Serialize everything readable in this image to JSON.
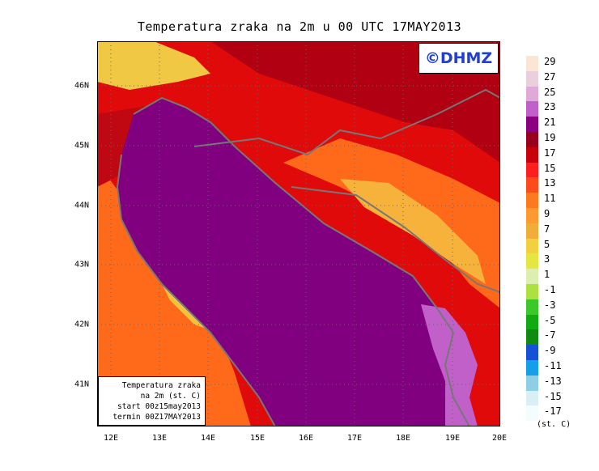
{
  "title": "Temperatura zraka na 2m u 00 UTC 17MAY2013",
  "logo_text": "©DHMZ",
  "info_box": {
    "line1": "Temperatura zraka",
    "line2": "na 2m (st. C)",
    "line3": "start 00z15may2013",
    "line4": "termin 00Z17MAY2013"
  },
  "axes": {
    "x_ticks": [
      "12E",
      "13E",
      "14E",
      "15E",
      "16E",
      "17E",
      "18E",
      "19E",
      "20E"
    ],
    "y_ticks": [
      "46N",
      "45N",
      "44N",
      "43N",
      "42N",
      "41N"
    ]
  },
  "legend": {
    "unit": "(st. C)",
    "labels": [
      "29",
      "27",
      "25",
      "23",
      "21",
      "19",
      "17",
      "15",
      "13",
      "11",
      "9",
      "7",
      "5",
      "3",
      "1",
      "-1",
      "-3",
      "-5",
      "-7",
      "-9",
      "-11",
      "-13",
      "-15",
      "-17"
    ],
    "colors": [
      "#fbe6d6",
      "#ead0dd",
      "#dfaad9",
      "#c060c8",
      "#8a0080",
      "#98001e",
      "#c8000a",
      "#ff1e1e",
      "#ff4a1a",
      "#ff7a1e",
      "#ff9a30",
      "#f0ae38",
      "#f2d040",
      "#e6e640",
      "#dceeb0",
      "#aee040",
      "#3cc828",
      "#12aa12",
      "#108a10",
      "#1450d8",
      "#14a0e8",
      "#8ecfe6",
      "#d8f0f4",
      "#f4fcfe"
    ]
  },
  "colors": {
    "sea": "#800080",
    "sea_deep": "#8b1a8b",
    "coast_dark": "#a8001e",
    "land_red": "#e00a0a",
    "land_orange": "#ff6a1a",
    "land_yellow": "#f4c23a",
    "coastline": "#777777",
    "logo_blue": "#1f3fd6"
  }
}
